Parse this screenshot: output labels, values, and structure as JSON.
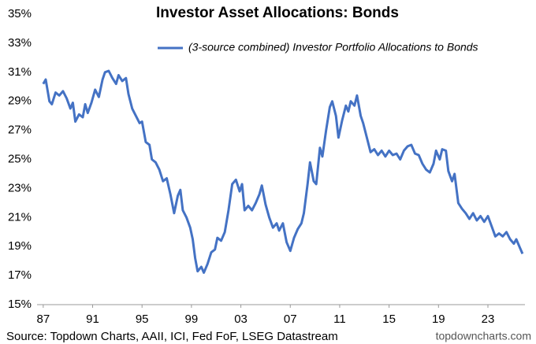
{
  "chart_data": {
    "type": "line",
    "title": "Investor Asset Allocations: Bonds",
    "source": "Source: Topdown Charts, AAII, ICI, Fed FoF, LSEG Datastream",
    "watermark": "topdowncharts.com",
    "grid": false,
    "xlim": [
      1986.5,
      2026.0
    ],
    "xticks": [
      {
        "value": 1987,
        "label": "87"
      },
      {
        "value": 1991,
        "label": "91"
      },
      {
        "value": 1995,
        "label": "95"
      },
      {
        "value": 1999,
        "label": "99"
      },
      {
        "value": 2003,
        "label": "03"
      },
      {
        "value": 2007,
        "label": "07"
      },
      {
        "value": 2011,
        "label": "11"
      },
      {
        "value": 2015,
        "label": "15"
      },
      {
        "value": 2019,
        "label": "19"
      },
      {
        "value": 2023,
        "label": "23"
      }
    ],
    "ylim": [
      15,
      35
    ],
    "yticks": [
      {
        "value": 15,
        "label": "15%"
      },
      {
        "value": 17,
        "label": "17%"
      },
      {
        "value": 19,
        "label": "19%"
      },
      {
        "value": 21,
        "label": "21%"
      },
      {
        "value": 23,
        "label": "23%"
      },
      {
        "value": 25,
        "label": "25%"
      },
      {
        "value": 27,
        "label": "27%"
      },
      {
        "value": 29,
        "label": "29%"
      },
      {
        "value": 31,
        "label": "31%"
      },
      {
        "value": 33,
        "label": "33%"
      },
      {
        "value": 35,
        "label": "35%"
      }
    ],
    "x": [
      1987.0,
      1987.2,
      1987.5,
      1987.7,
      1988.0,
      1988.3,
      1988.6,
      1988.9,
      1989.2,
      1989.4,
      1989.6,
      1989.9,
      1990.2,
      1990.4,
      1990.6,
      1990.9,
      1991.2,
      1991.5,
      1991.8,
      1992.0,
      1992.3,
      1992.6,
      1992.9,
      1993.1,
      1993.4,
      1993.7,
      1993.9,
      1994.2,
      1994.5,
      1994.8,
      1995.0,
      1995.3,
      1995.6,
      1995.8,
      1996.1,
      1996.4,
      1996.7,
      1997.0,
      1997.3,
      1997.6,
      1997.9,
      1998.1,
      1998.3,
      1998.6,
      1998.9,
      1999.1,
      1999.3,
      1999.5,
      1999.8,
      2000.0,
      2000.3,
      2000.6,
      2000.9,
      2001.1,
      2001.4,
      2001.7,
      2002.0,
      2002.3,
      2002.6,
      2002.9,
      2003.1,
      2003.3,
      2003.6,
      2003.9,
      2004.2,
      2004.5,
      2004.7,
      2005.0,
      2005.3,
      2005.6,
      2005.9,
      2006.1,
      2006.4,
      2006.7,
      2007.0,
      2007.3,
      2007.6,
      2007.9,
      2008.1,
      2008.4,
      2008.6,
      2008.9,
      2009.1,
      2009.4,
      2009.6,
      2009.9,
      2010.2,
      2010.4,
      2010.7,
      2010.9,
      2011.2,
      2011.5,
      2011.7,
      2011.9,
      2012.2,
      2012.4,
      2012.7,
      2012.9,
      2013.2,
      2013.5,
      2013.8,
      2014.1,
      2014.4,
      2014.7,
      2015.0,
      2015.3,
      2015.6,
      2015.9,
      2016.2,
      2016.5,
      2016.8,
      2017.1,
      2017.4,
      2017.7,
      2018.0,
      2018.3,
      2018.6,
      2018.8,
      2019.1,
      2019.3,
      2019.6,
      2019.8,
      2020.1,
      2020.3,
      2020.6,
      2020.9,
      2021.2,
      2021.5,
      2021.8,
      2022.1,
      2022.4,
      2022.7,
      2023.0,
      2023.3,
      2023.6,
      2023.9,
      2024.2,
      2024.5,
      2024.8,
      2025.1,
      2025.3,
      2025.6,
      2025.8
    ],
    "series": [
      {
        "name": "(3-source combined) Investor Portfolio Allocations to Bonds",
        "color": "#4472c4",
        "values": [
          30.2,
          30.5,
          29.0,
          28.8,
          29.6,
          29.4,
          29.7,
          29.2,
          28.5,
          28.9,
          27.6,
          28.1,
          27.9,
          28.8,
          28.2,
          28.9,
          29.8,
          29.3,
          30.5,
          31.0,
          31.1,
          30.6,
          30.2,
          30.8,
          30.4,
          30.6,
          29.5,
          28.5,
          28.0,
          27.5,
          27.6,
          26.2,
          26.0,
          25.0,
          24.8,
          24.3,
          23.5,
          23.7,
          22.6,
          21.3,
          22.5,
          22.9,
          21.5,
          21.0,
          20.3,
          19.5,
          18.2,
          17.3,
          17.6,
          17.2,
          17.8,
          18.6,
          18.8,
          19.6,
          19.4,
          20.0,
          21.5,
          23.3,
          23.6,
          22.8,
          23.3,
          21.5,
          21.8,
          21.5,
          22.0,
          22.6,
          23.2,
          21.9,
          21.0,
          20.3,
          20.6,
          20.1,
          20.6,
          19.3,
          18.7,
          19.6,
          20.2,
          20.6,
          21.3,
          23.3,
          24.8,
          23.5,
          23.3,
          25.8,
          25.2,
          27.0,
          28.6,
          29.0,
          28.0,
          26.5,
          27.7,
          28.7,
          28.3,
          29.0,
          28.7,
          29.4,
          28.0,
          27.5,
          26.5,
          25.5,
          25.7,
          25.3,
          25.6,
          25.2,
          25.6,
          25.3,
          25.4,
          25.0,
          25.6,
          25.9,
          26.0,
          25.4,
          25.3,
          24.7,
          24.3,
          24.1,
          24.7,
          25.6,
          25.0,
          25.7,
          25.6,
          24.2,
          23.5,
          24.0,
          22.0,
          21.6,
          21.3,
          20.9,
          21.3,
          20.8,
          21.1,
          20.7,
          21.1,
          20.4,
          19.7,
          19.9,
          19.7,
          20.0,
          19.5,
          19.2,
          19.5,
          18.9,
          18.5
        ]
      }
    ]
  }
}
